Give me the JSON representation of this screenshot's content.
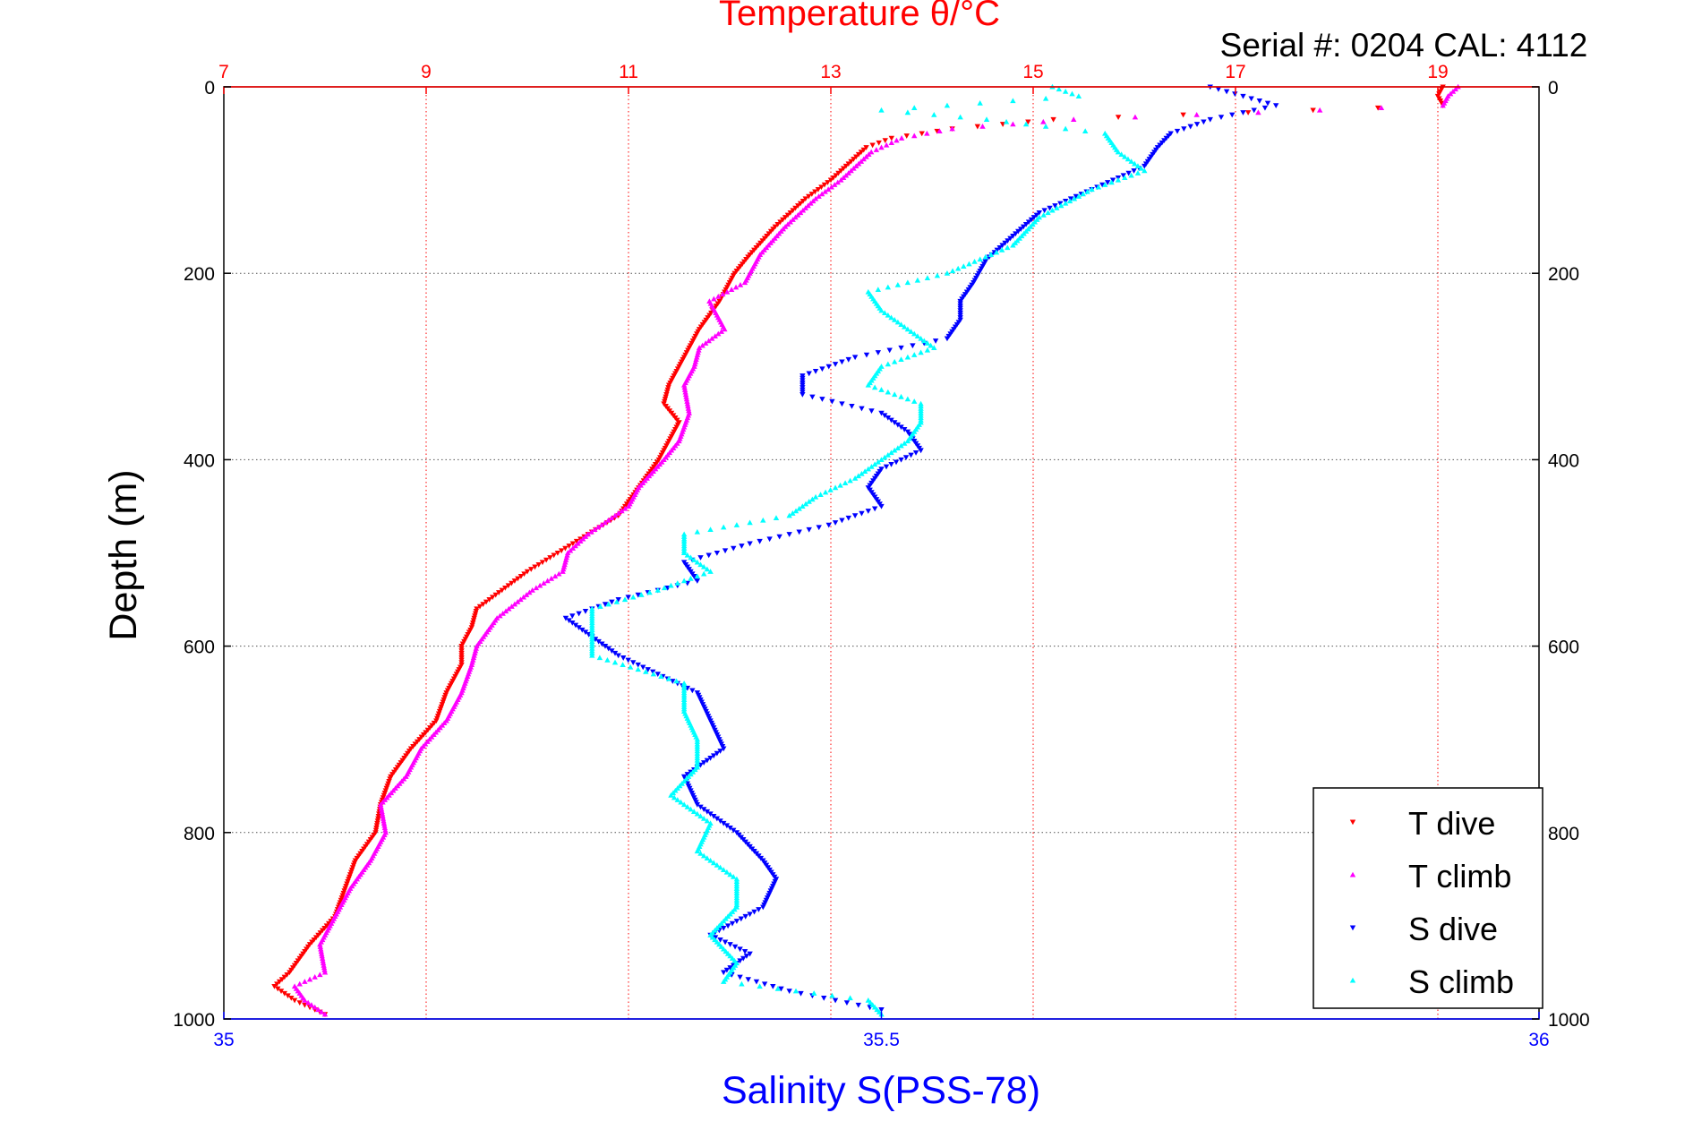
{
  "chart_data": {
    "type": "scatter",
    "title": "Temperature θ/°C",
    "annotation": "Serial #: 0204  CAL: 4112",
    "xlabel": "Salinity S(PSS-78)",
    "ylabel": "Depth (m)",
    "top_axis": {
      "range": [
        7,
        20
      ],
      "ticks": [
        "7",
        "9",
        "11",
        "13",
        "15",
        "17",
        "19"
      ],
      "tick_values": [
        7,
        9,
        11,
        13,
        15,
        17,
        19
      ],
      "color": "#ff0000"
    },
    "bottom_axis": {
      "range": [
        35,
        36
      ],
      "ticks": [
        "35",
        "35.5",
        "36"
      ],
      "tick_values": [
        35,
        35.5,
        36
      ],
      "color": "#0000ff"
    },
    "y_axis": {
      "range": [
        0,
        1000
      ],
      "inverted": true,
      "ticks": [
        "0",
        "200",
        "400",
        "600",
        "800",
        "1000"
      ],
      "tick_values": [
        0,
        200,
        400,
        600,
        800,
        1000
      ]
    },
    "grid": true,
    "legend_position": "bottom-right",
    "series": [
      {
        "name": "T dive",
        "axis": "top",
        "color": "#ff0000",
        "marker": "triangle-down",
        "depth": [
          0,
          10,
          20,
          35,
          45,
          55,
          65,
          80,
          100,
          120,
          150,
          180,
          200,
          230,
          260,
          290,
          320,
          340,
          360,
          380,
          400,
          430,
          460,
          480,
          500,
          520,
          540,
          560,
          580,
          600,
          620,
          650,
          680,
          710,
          740,
          770,
          800,
          830,
          860,
          890,
          920,
          950,
          965,
          980,
          995
        ],
        "values": [
          19.05,
          19.0,
          19.05,
          15.2,
          14.2,
          13.6,
          13.35,
          13.2,
          13.0,
          12.75,
          12.45,
          12.2,
          12.05,
          11.9,
          11.7,
          11.55,
          11.4,
          11.35,
          11.5,
          11.4,
          11.3,
          11.1,
          10.9,
          10.6,
          10.3,
          10.0,
          9.75,
          9.5,
          9.45,
          9.35,
          9.35,
          9.2,
          9.1,
          8.85,
          8.65,
          8.55,
          8.5,
          8.3,
          8.2,
          8.1,
          7.85,
          7.65,
          7.5,
          7.7,
          8.0
        ]
      },
      {
        "name": "T climb",
        "axis": "top",
        "color": "#ff00ff",
        "marker": "triangle-up",
        "depth": [
          0,
          10,
          20,
          35,
          45,
          55,
          70,
          85,
          100,
          120,
          150,
          180,
          210,
          230,
          260,
          280,
          300,
          320,
          350,
          380,
          400,
          430,
          450,
          480,
          500,
          520,
          540,
          570,
          600,
          620,
          650,
          680,
          710,
          740,
          770,
          800,
          830,
          860,
          890,
          920,
          950,
          965,
          980,
          995
        ],
        "values": [
          19.2,
          19.1,
          19.05,
          15.4,
          14.2,
          13.7,
          13.4,
          13.25,
          13.1,
          12.85,
          12.55,
          12.3,
          12.15,
          11.8,
          11.95,
          11.7,
          11.65,
          11.55,
          11.6,
          11.5,
          11.35,
          11.1,
          11.0,
          10.6,
          10.4,
          10.35,
          10.05,
          9.7,
          9.5,
          9.45,
          9.35,
          9.2,
          8.95,
          8.8,
          8.55,
          8.6,
          8.45,
          8.25,
          8.1,
          7.95,
          8.0,
          7.7,
          7.8,
          8.0
        ]
      },
      {
        "name": "S dive",
        "axis": "bottom",
        "color": "#0000ff",
        "marker": "triangle-down",
        "depth": [
          0,
          20,
          35,
          50,
          65,
          85,
          110,
          135,
          160,
          185,
          210,
          230,
          250,
          270,
          290,
          310,
          330,
          350,
          370,
          390,
          410,
          430,
          450,
          470,
          490,
          510,
          530,
          550,
          570,
          590,
          610,
          630,
          650,
          680,
          710,
          740,
          770,
          800,
          830,
          850,
          880,
          910,
          930,
          950,
          970,
          990
        ],
        "values": [
          35.75,
          35.8,
          35.75,
          35.72,
          35.71,
          35.7,
          35.66,
          35.62,
          35.6,
          35.58,
          35.57,
          35.56,
          35.56,
          35.55,
          35.48,
          35.44,
          35.44,
          35.5,
          35.52,
          35.53,
          35.5,
          35.49,
          35.5,
          35.46,
          35.4,
          35.35,
          35.36,
          35.3,
          35.26,
          35.28,
          35.3,
          35.33,
          35.36,
          35.37,
          35.38,
          35.35,
          35.36,
          35.39,
          35.41,
          35.42,
          35.41,
          35.37,
          35.4,
          35.38,
          35.43,
          35.5
        ]
      },
      {
        "name": "S climb",
        "axis": "bottom",
        "color": "#00ffff",
        "marker": "triangle-up",
        "depth": [
          0,
          10,
          25,
          35,
          50,
          70,
          90,
          110,
          140,
          170,
          200,
          220,
          240,
          260,
          280,
          300,
          320,
          340,
          360,
          380,
          400,
          420,
          440,
          460,
          480,
          500,
          520,
          540,
          560,
          590,
          610,
          640,
          670,
          700,
          730,
          760,
          790,
          820,
          850,
          880,
          910,
          940,
          960,
          980,
          995
        ],
        "values": [
          35.63,
          35.65,
          35.5,
          35.58,
          35.67,
          35.68,
          35.7,
          35.66,
          35.62,
          35.6,
          35.55,
          35.49,
          35.5,
          35.52,
          35.54,
          35.5,
          35.49,
          35.53,
          35.53,
          35.52,
          35.5,
          35.48,
          35.45,
          35.43,
          35.35,
          35.35,
          35.37,
          35.33,
          35.28,
          35.28,
          35.28,
          35.35,
          35.35,
          35.36,
          35.36,
          35.34,
          35.37,
          35.36,
          35.39,
          35.39,
          35.37,
          35.39,
          35.38,
          35.49,
          35.5
        ]
      }
    ]
  }
}
